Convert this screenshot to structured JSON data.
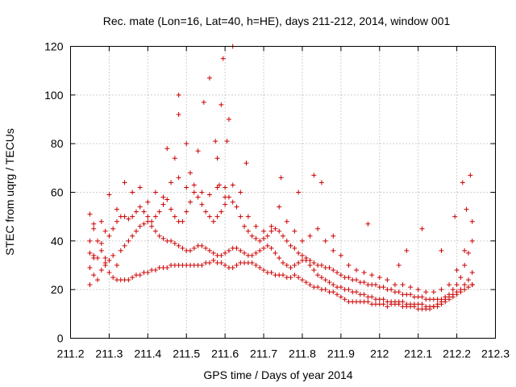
{
  "chart_data": {
    "type": "scatter",
    "title": "Rec. mate (Lon=16, Lat=40, h=HE), days 211-212, 2014, window 001",
    "xlabel": "GPS time / Days of year 2014",
    "ylabel": "STEC from uqrg / TECUs",
    "xlim": [
      211.2,
      212.3
    ],
    "ylim": [
      0,
      120
    ],
    "xticks": [
      "211.2",
      "211.3",
      "211.4",
      "211.5",
      "211.6",
      "211.7",
      "211.8",
      "211.9",
      "212",
      "212.1",
      "212.2",
      "212.3"
    ],
    "yticks": [
      "0",
      "20",
      "40",
      "60",
      "80",
      "100",
      "120"
    ],
    "grid": true,
    "marker": "plus",
    "color": "#cc0000",
    "series": [
      {
        "x": [
          211.25,
          211.25,
          211.25,
          211.26,
          211.26,
          211.27,
          211.28,
          211.29,
          211.29,
          211.3,
          211.31,
          211.32,
          211.33,
          211.34,
          211.35,
          211.36,
          211.37,
          211.38,
          211.39,
          211.4,
          211.41,
          211.42,
          211.43,
          211.44,
          211.45,
          211.46,
          211.47,
          211.48,
          211.49,
          211.5,
          211.51,
          211.52,
          211.53,
          211.54,
          211.55,
          211.56,
          211.57,
          211.58,
          211.59,
          211.6,
          211.61,
          211.62,
          211.63,
          211.64,
          211.65,
          211.66,
          211.67,
          211.68,
          211.69,
          211.7,
          211.71,
          211.72,
          211.73,
          211.74,
          211.75,
          211.76,
          211.77,
          211.78,
          211.79,
          211.8,
          211.81,
          211.82,
          211.83,
          211.84,
          211.85,
          211.86,
          211.87,
          211.88,
          211.89,
          211.9,
          211.91,
          211.92,
          211.93,
          211.94,
          211.95,
          211.96,
          211.97,
          211.98,
          211.99,
          212.0,
          212.01,
          212.02,
          212.03,
          212.04,
          212.05,
          212.06,
          212.07,
          212.08,
          212.09,
          212.1,
          212.11,
          212.12,
          212.13,
          212.14,
          212.15,
          212.16,
          212.17,
          212.18,
          212.19,
          212.2,
          212.21,
          212.22,
          212.23,
          212.24,
          212.24
        ],
        "y": [
          22,
          29,
          35,
          26,
          33,
          24,
          28,
          30,
          31,
          27,
          25,
          24,
          24,
          24,
          24,
          25,
          26,
          26,
          27,
          27,
          28,
          28,
          29,
          29,
          29,
          30,
          30,
          30,
          30,
          30,
          30,
          30,
          30,
          30,
          31,
          31,
          32,
          31,
          31,
          30,
          29,
          29,
          30,
          31,
          31,
          31,
          31,
          30,
          29,
          28,
          27,
          27,
          26,
          26,
          26,
          25,
          25,
          26,
          25,
          24,
          23,
          22,
          21,
          21,
          20,
          20,
          19,
          19,
          18,
          17,
          16,
          15,
          15,
          15,
          15,
          15,
          15,
          14,
          14,
          14,
          14,
          13,
          14,
          14,
          14,
          13,
          13,
          13,
          13,
          12,
          12,
          12,
          12,
          13,
          13,
          14,
          15,
          16,
          17,
          18,
          19,
          20,
          21,
          22,
          22
        ]
      },
      {
        "x": [
          211.25,
          211.26,
          211.27,
          211.28,
          211.29,
          211.3,
          211.31,
          211.32,
          211.33,
          211.34,
          211.35,
          211.36,
          211.37,
          211.38,
          211.39,
          211.4,
          211.41,
          211.42,
          211.43,
          211.44,
          211.45,
          211.46,
          211.47,
          211.48,
          211.49,
          211.5,
          211.51,
          211.52,
          211.53,
          211.54,
          211.55,
          211.56,
          211.57,
          211.58,
          211.59,
          211.6,
          211.61,
          211.62,
          211.63,
          211.64,
          211.65,
          211.66,
          211.67,
          211.68,
          211.69,
          211.7,
          211.71,
          211.72,
          211.73,
          211.74,
          211.75,
          211.76,
          211.77,
          211.78,
          211.79,
          211.8,
          211.81,
          211.82,
          211.83,
          211.84,
          211.85,
          211.86,
          211.87,
          211.88,
          211.89,
          211.9,
          211.91,
          211.92,
          211.93,
          211.94,
          211.95,
          211.96,
          211.97,
          211.98,
          211.99,
          212.0,
          212.01,
          212.02,
          212.03,
          212.04,
          212.05,
          212.06,
          212.07,
          212.08,
          212.09,
          212.1,
          212.11,
          212.12,
          212.13,
          212.14,
          212.15,
          212.16,
          212.17,
          212.18,
          212.19,
          212.2,
          212.21,
          212.22,
          212.23,
          212.24
        ],
        "y": [
          40,
          34,
          33,
          36,
          33,
          32,
          34,
          30,
          36,
          38,
          40,
          42,
          44,
          46,
          47,
          48,
          46,
          44,
          42,
          41,
          40,
          40,
          39,
          38,
          37,
          36,
          36,
          37,
          38,
          38,
          37,
          36,
          35,
          34,
          34,
          35,
          36,
          37,
          37,
          36,
          35,
          34,
          34,
          35,
          36,
          37,
          38,
          37,
          35,
          33,
          31,
          30,
          29,
          30,
          31,
          32,
          32,
          30,
          28,
          26,
          25,
          24,
          23,
          22,
          21,
          21,
          20,
          20,
          19,
          19,
          18,
          18,
          17,
          17,
          16,
          16,
          16,
          15,
          15,
          15,
          15,
          15,
          14,
          14,
          14,
          14,
          14,
          13,
          13,
          13,
          14,
          15,
          16,
          17,
          18,
          19,
          20,
          22,
          24,
          27
        ]
      },
      {
        "x": [
          211.25,
          211.26,
          211.27,
          211.28,
          211.29,
          211.3,
          211.31,
          211.32,
          211.33,
          211.34,
          211.35,
          211.36,
          211.37,
          211.38,
          211.39,
          211.4,
          211.41,
          211.42,
          211.43,
          211.44,
          211.45,
          211.46,
          211.47,
          211.48,
          211.49,
          211.5,
          211.51,
          211.52,
          211.53,
          211.54,
          211.55,
          211.56,
          211.57,
          211.58,
          211.59,
          211.6,
          211.61,
          211.62,
          211.63,
          211.64,
          211.65,
          211.66,
          211.67,
          211.68,
          211.69,
          211.7,
          211.71,
          211.72,
          211.73,
          211.74,
          211.75,
          211.76,
          211.77,
          211.78,
          211.79,
          211.8,
          211.81,
          211.82,
          211.83,
          211.84,
          211.85,
          211.86,
          211.87,
          211.88,
          211.89,
          211.9,
          211.91,
          211.92,
          211.93,
          211.94,
          211.95,
          211.96,
          211.97,
          211.98,
          211.99,
          212.0,
          212.01,
          212.02,
          212.03,
          212.04,
          212.05,
          212.06,
          212.07,
          212.08,
          212.09,
          212.1,
          212.11,
          212.12,
          212.13,
          212.14,
          212.15,
          212.16,
          212.17,
          212.18,
          212.19,
          212.2,
          212.21,
          212.22,
          212.23,
          212.24
        ],
        "y": [
          51,
          45,
          40,
          48,
          44,
          42,
          45,
          48,
          50,
          50,
          49,
          50,
          52,
          54,
          52,
          50,
          48,
          50,
          52,
          55,
          57,
          53,
          50,
          48,
          48,
          52,
          56,
          60,
          58,
          55,
          52,
          50,
          48,
          50,
          52,
          55,
          58,
          56,
          54,
          50,
          46,
          44,
          42,
          41,
          40,
          41,
          42,
          44,
          45,
          44,
          42,
          40,
          38,
          37,
          35,
          34,
          33,
          32,
          31,
          30,
          30,
          29,
          29,
          28,
          27,
          26,
          25,
          25,
          24,
          24,
          23,
          23,
          22,
          22,
          22,
          21,
          21,
          20,
          20,
          19,
          19,
          18,
          18,
          18,
          17,
          17,
          17,
          16,
          16,
          16,
          16,
          16,
          17,
          18,
          20,
          22,
          25,
          30,
          35,
          40
        ]
      },
      {
        "x": [
          211.26,
          211.28,
          211.3,
          211.32,
          211.34,
          211.36,
          211.38,
          211.4,
          211.42,
          211.44,
          211.46,
          211.48,
          211.5,
          211.52,
          211.54,
          211.56,
          211.58,
          211.6,
          211.62,
          211.64,
          211.66,
          211.68,
          211.7,
          211.72,
          211.74,
          211.76,
          211.78,
          211.8,
          211.82,
          211.84,
          211.86,
          211.88,
          211.9,
          211.92,
          211.94,
          211.96,
          211.98,
          212.0,
          212.02,
          212.04,
          212.06,
          212.08,
          212.1,
          212.12,
          212.14,
          212.16,
          212.18,
          212.2,
          212.22,
          212.24
        ],
        "y": [
          47,
          39,
          59,
          53,
          64,
          60,
          62,
          56,
          60,
          58,
          64,
          66,
          62,
          63,
          60,
          59,
          62,
          58,
          63,
          60,
          50,
          46,
          44,
          46,
          54,
          48,
          44,
          40,
          42,
          45,
          40,
          36,
          34,
          30,
          28,
          27,
          26,
          25,
          24,
          22,
          22,
          21,
          20,
          19,
          19,
          20,
          22,
          28,
          36,
          48
        ]
      },
      {
        "x": [
          211.45,
          211.47,
          211.48,
          211.48,
          211.5,
          211.51,
          211.53,
          211.545,
          211.56,
          211.575,
          211.58,
          211.585,
          211.59,
          211.595,
          211.6,
          211.605,
          211.61,
          211.62,
          211.655,
          211.745,
          211.79,
          211.83,
          211.85,
          211.88,
          211.97,
          212.05,
          212.07,
          212.11,
          212.16,
          212.195,
          212.215,
          212.225,
          212.235
        ],
        "y": [
          78,
          74,
          92,
          100,
          80,
          68,
          77,
          97,
          107,
          81,
          74,
          63,
          96,
          115,
          62,
          81,
          90,
          120,
          72,
          66,
          60,
          67,
          64,
          42,
          47,
          30,
          36,
          45,
          36,
          50,
          64,
          53,
          67
        ]
      }
    ]
  }
}
